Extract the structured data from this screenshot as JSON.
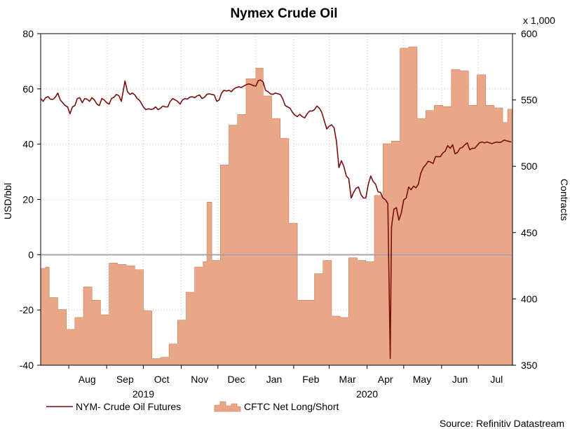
{
  "chart_data": {
    "type": "line+area",
    "title": "Nymex Crude Oil",
    "source": "Source: Refinitiv Datastream",
    "left_axis": {
      "label": "USD/bbl",
      "range": [
        -40,
        80
      ],
      "ticks": [
        "80",
        "60",
        "40",
        "20",
        "0",
        "-20",
        "-40"
      ],
      "tick_values": [
        80,
        60,
        40,
        20,
        0,
        -20,
        -40
      ]
    },
    "right_axis": {
      "label": "Contracts",
      "multiplier": "x 1,000",
      "range": [
        350,
        600
      ],
      "ticks": [
        "600",
        "550",
        "500",
        "450",
        "400",
        "350"
      ],
      "tick_values": [
        600,
        550,
        500,
        450,
        400,
        350
      ]
    },
    "x_axis": {
      "start": "2019-07-09",
      "end": "2020-07-29",
      "month_labels": [
        {
          "label": "Aug",
          "date": "2019-08-16"
        },
        {
          "label": "Sep",
          "date": "2019-09-16"
        },
        {
          "label": "Oct",
          "date": "2019-10-16"
        },
        {
          "label": "Nov",
          "date": "2019-11-16"
        },
        {
          "label": "Dec",
          "date": "2019-12-16"
        },
        {
          "label": "Jan",
          "date": "2020-01-16"
        },
        {
          "label": "Feb",
          "date": "2020-02-15"
        },
        {
          "label": "Mar",
          "date": "2020-03-16"
        },
        {
          "label": "Apr",
          "date": "2020-04-16"
        },
        {
          "label": "May",
          "date": "2020-05-16"
        },
        {
          "label": "Jun",
          "date": "2020-06-16"
        },
        {
          "label": "Jul",
          "date": "2020-07-16"
        }
      ],
      "month_ticks": [
        "2019-08-01",
        "2019-09-01",
        "2019-10-01",
        "2019-11-01",
        "2019-12-01",
        "2020-01-01",
        "2020-02-01",
        "2020-03-01",
        "2020-04-01",
        "2020-05-01",
        "2020-06-01",
        "2020-07-01"
      ],
      "year_labels": [
        {
          "label": "2019",
          "date": "2019-10-01"
        },
        {
          "label": "2020",
          "date": "2020-04-01"
        }
      ]
    },
    "grid": true,
    "zero_line": true,
    "legend_position": "bottom-left",
    "series": [
      {
        "name": "NYM- Crude Oil Futures",
        "kind": "line",
        "axis": "left",
        "color": "#7a0d0d",
        "points": [
          [
            "2019-07-09",
            56.5
          ],
          [
            "2019-07-11",
            55.5
          ],
          [
            "2019-07-13",
            56.8
          ],
          [
            "2019-07-15",
            57.2
          ],
          [
            "2019-07-17",
            56.3
          ],
          [
            "2019-07-19",
            56.2
          ],
          [
            "2019-07-21",
            57.0
          ],
          [
            "2019-07-23",
            58.5
          ],
          [
            "2019-07-25",
            56.0
          ],
          [
            "2019-07-27",
            55.0
          ],
          [
            "2019-07-29",
            54.0
          ],
          [
            "2019-07-31",
            53.5
          ],
          [
            "2019-08-02",
            51.0
          ],
          [
            "2019-08-04",
            53.5
          ],
          [
            "2019-08-06",
            54.0
          ],
          [
            "2019-08-08",
            56.5
          ],
          [
            "2019-08-10",
            56.8
          ],
          [
            "2019-08-12",
            55.0
          ],
          [
            "2019-08-14",
            56.5
          ],
          [
            "2019-08-16",
            56.3
          ],
          [
            "2019-08-18",
            55.5
          ],
          [
            "2019-08-20",
            56.8
          ],
          [
            "2019-08-22",
            56.0
          ],
          [
            "2019-08-24",
            54.5
          ],
          [
            "2019-08-26",
            54.0
          ],
          [
            "2019-08-28",
            56.5
          ],
          [
            "2019-08-30",
            56.0
          ],
          [
            "2019-09-01",
            55.0
          ],
          [
            "2019-09-03",
            54.5
          ],
          [
            "2019-09-05",
            56.5
          ],
          [
            "2019-09-07",
            57.0
          ],
          [
            "2019-09-09",
            58.0
          ],
          [
            "2019-09-11",
            57.5
          ],
          [
            "2019-09-13",
            55.5
          ],
          [
            "2019-09-16",
            62.9
          ],
          [
            "2019-09-18",
            59.0
          ],
          [
            "2019-09-20",
            58.0
          ],
          [
            "2019-09-22",
            58.5
          ],
          [
            "2019-09-24",
            57.8
          ],
          [
            "2019-09-26",
            56.5
          ],
          [
            "2019-09-28",
            55.8
          ],
          [
            "2019-10-01",
            53.5
          ],
          [
            "2019-10-03",
            52.5
          ],
          [
            "2019-10-05",
            52.8
          ],
          [
            "2019-10-07",
            52.6
          ],
          [
            "2019-10-09",
            52.7
          ],
          [
            "2019-10-11",
            53.5
          ],
          [
            "2019-10-13",
            52.5
          ],
          [
            "2019-10-15",
            53.0
          ],
          [
            "2019-10-17",
            53.8
          ],
          [
            "2019-10-19",
            53.5
          ],
          [
            "2019-10-21",
            53.5
          ],
          [
            "2019-10-23",
            55.5
          ],
          [
            "2019-10-25",
            56.5
          ],
          [
            "2019-10-27",
            56.0
          ],
          [
            "2019-10-29",
            55.5
          ],
          [
            "2019-10-31",
            54.5
          ],
          [
            "2019-11-02",
            56.0
          ],
          [
            "2019-11-04",
            56.5
          ],
          [
            "2019-11-06",
            56.3
          ],
          [
            "2019-11-08",
            57.0
          ],
          [
            "2019-11-10",
            57.2
          ],
          [
            "2019-11-12",
            56.8
          ],
          [
            "2019-11-14",
            57.5
          ],
          [
            "2019-11-16",
            57.8
          ],
          [
            "2019-11-18",
            56.5
          ],
          [
            "2019-11-20",
            57.0
          ],
          [
            "2019-11-22",
            58.0
          ],
          [
            "2019-11-24",
            58.2
          ],
          [
            "2019-11-26",
            58.0
          ],
          [
            "2019-11-28",
            57.8
          ],
          [
            "2019-11-30",
            55.5
          ],
          [
            "2019-12-02",
            56.0
          ],
          [
            "2019-12-04",
            58.5
          ],
          [
            "2019-12-06",
            59.5
          ],
          [
            "2019-12-08",
            59.2
          ],
          [
            "2019-12-10",
            59.5
          ],
          [
            "2019-12-12",
            59.0
          ],
          [
            "2019-12-14",
            60.0
          ],
          [
            "2019-12-16",
            60.5
          ],
          [
            "2019-12-18",
            60.8
          ],
          [
            "2019-12-20",
            60.5
          ],
          [
            "2019-12-22",
            61.0
          ],
          [
            "2019-12-24",
            61.5
          ],
          [
            "2019-12-26",
            61.8
          ],
          [
            "2019-12-28",
            61.6
          ],
          [
            "2019-12-30",
            61.2
          ],
          [
            "2020-01-01",
            61.0
          ],
          [
            "2020-01-03",
            63.0
          ],
          [
            "2020-01-05",
            63.2
          ],
          [
            "2020-01-07",
            62.5
          ],
          [
            "2020-01-09",
            59.5
          ],
          [
            "2020-01-11",
            59.0
          ],
          [
            "2020-01-13",
            58.2
          ],
          [
            "2020-01-15",
            58.0
          ],
          [
            "2020-01-17",
            58.5
          ],
          [
            "2020-01-19",
            58.2
          ],
          [
            "2020-01-21",
            58.0
          ],
          [
            "2020-01-23",
            56.5
          ],
          [
            "2020-01-25",
            54.0
          ],
          [
            "2020-01-27",
            53.5
          ],
          [
            "2020-01-29",
            53.0
          ],
          [
            "2020-01-31",
            51.5
          ],
          [
            "2020-02-02",
            50.5
          ],
          [
            "2020-02-04",
            50.0
          ],
          [
            "2020-02-06",
            50.8
          ],
          [
            "2020-02-08",
            50.0
          ],
          [
            "2020-02-10",
            49.5
          ],
          [
            "2020-02-12",
            51.0
          ],
          [
            "2020-02-14",
            52.0
          ],
          [
            "2020-02-16",
            52.0
          ],
          [
            "2020-02-18",
            52.5
          ],
          [
            "2020-02-20",
            53.8
          ],
          [
            "2020-02-22",
            53.0
          ],
          [
            "2020-02-24",
            51.5
          ],
          [
            "2020-02-26",
            48.5
          ],
          [
            "2020-02-28",
            45.5
          ],
          [
            "2020-03-01",
            46.5
          ],
          [
            "2020-03-03",
            47.0
          ],
          [
            "2020-03-05",
            46.0
          ],
          [
            "2020-03-07",
            41.0
          ],
          [
            "2020-03-09",
            31.5
          ],
          [
            "2020-03-11",
            34.0
          ],
          [
            "2020-03-13",
            32.0
          ],
          [
            "2020-03-15",
            28.5
          ],
          [
            "2020-03-17",
            27.5
          ],
          [
            "2020-03-19",
            20.5
          ],
          [
            "2020-03-21",
            22.5
          ],
          [
            "2020-03-23",
            24.0
          ],
          [
            "2020-03-25",
            24.5
          ],
          [
            "2020-03-27",
            21.8
          ],
          [
            "2020-03-29",
            20.5
          ],
          [
            "2020-03-31",
            20.5
          ],
          [
            "2020-04-02",
            25.5
          ],
          [
            "2020-04-04",
            28.5
          ],
          [
            "2020-04-06",
            26.5
          ],
          [
            "2020-04-08",
            25.5
          ],
          [
            "2020-04-10",
            22.8
          ],
          [
            "2020-04-12",
            22.5
          ],
          [
            "2020-04-14",
            20.5
          ],
          [
            "2020-04-16",
            19.9
          ],
          [
            "2020-04-18",
            18.5
          ],
          [
            "2020-04-20",
            -37.6
          ],
          [
            "2020-04-21",
            10.0
          ],
          [
            "2020-04-23",
            16.5
          ],
          [
            "2020-04-25",
            17.0
          ],
          [
            "2020-04-27",
            12.5
          ],
          [
            "2020-04-29",
            15.0
          ],
          [
            "2020-05-01",
            19.8
          ],
          [
            "2020-05-03",
            20.5
          ],
          [
            "2020-05-05",
            24.5
          ],
          [
            "2020-05-07",
            23.5
          ],
          [
            "2020-05-09",
            24.8
          ],
          [
            "2020-05-11",
            24.2
          ],
          [
            "2020-05-13",
            25.5
          ],
          [
            "2020-05-15",
            29.5
          ],
          [
            "2020-05-17",
            31.5
          ],
          [
            "2020-05-19",
            32.5
          ],
          [
            "2020-05-21",
            33.8
          ],
          [
            "2020-05-23",
            33.5
          ],
          [
            "2020-05-25",
            33.0
          ],
          [
            "2020-05-27",
            35.5
          ],
          [
            "2020-05-29",
            35.5
          ],
          [
            "2020-05-31",
            35.5
          ],
          [
            "2020-06-02",
            36.8
          ],
          [
            "2020-06-04",
            37.5
          ],
          [
            "2020-06-06",
            39.5
          ],
          [
            "2020-06-08",
            38.5
          ],
          [
            "2020-06-10",
            39.8
          ],
          [
            "2020-06-12",
            36.5
          ],
          [
            "2020-06-14",
            37.0
          ],
          [
            "2020-06-16",
            38.5
          ],
          [
            "2020-06-18",
            38.8
          ],
          [
            "2020-06-20",
            39.8
          ],
          [
            "2020-06-22",
            40.5
          ],
          [
            "2020-06-24",
            38.0
          ],
          [
            "2020-06-26",
            38.5
          ],
          [
            "2020-06-28",
            38.5
          ],
          [
            "2020-06-30",
            39.5
          ],
          [
            "2020-07-02",
            40.5
          ],
          [
            "2020-07-04",
            40.8
          ],
          [
            "2020-07-06",
            40.5
          ],
          [
            "2020-07-08",
            40.8
          ],
          [
            "2020-07-10",
            40.5
          ],
          [
            "2020-07-12",
            40.2
          ],
          [
            "2020-07-14",
            40.5
          ],
          [
            "2020-07-16",
            40.8
          ],
          [
            "2020-07-18",
            40.6
          ],
          [
            "2020-07-20",
            40.8
          ],
          [
            "2020-07-22",
            41.5
          ],
          [
            "2020-07-24",
            41.2
          ],
          [
            "2020-07-26",
            41.0
          ],
          [
            "2020-07-28",
            40.8
          ]
        ]
      },
      {
        "name": "CFTC Net Long/Short",
        "kind": "area-step",
        "axis": "right",
        "color": "#e8a888",
        "edge_color": "#c46a48",
        "points": [
          [
            "2019-07-09",
            423
          ],
          [
            "2019-07-13",
            424
          ],
          [
            "2019-07-16",
            401
          ],
          [
            "2019-07-23",
            392
          ],
          [
            "2019-07-30",
            377
          ],
          [
            "2019-08-06",
            386
          ],
          [
            "2019-08-13",
            409
          ],
          [
            "2019-08-20",
            399
          ],
          [
            "2019-08-27",
            388
          ],
          [
            "2019-09-03",
            427
          ],
          [
            "2019-09-10",
            426
          ],
          [
            "2019-09-17",
            425
          ],
          [
            "2019-09-24",
            422
          ],
          [
            "2019-10-01",
            391
          ],
          [
            "2019-10-08",
            355
          ],
          [
            "2019-10-15",
            356
          ],
          [
            "2019-10-22",
            366
          ],
          [
            "2019-10-29",
            384
          ],
          [
            "2019-11-05",
            405
          ],
          [
            "2019-11-12",
            424
          ],
          [
            "2019-11-19",
            428
          ],
          [
            "2019-11-22",
            473
          ],
          [
            "2019-11-26",
            429
          ],
          [
            "2019-12-03",
            501
          ],
          [
            "2019-12-10",
            531
          ],
          [
            "2019-12-17",
            539
          ],
          [
            "2019-12-24",
            566
          ],
          [
            "2020-01-01",
            574
          ],
          [
            "2020-01-07",
            553
          ],
          [
            "2020-01-14",
            536
          ],
          [
            "2020-01-21",
            521
          ],
          [
            "2020-01-28",
            457
          ],
          [
            "2020-02-04",
            399
          ],
          [
            "2020-02-11",
            399
          ],
          [
            "2020-02-18",
            419
          ],
          [
            "2020-02-25",
            429
          ],
          [
            "2020-03-03",
            387
          ],
          [
            "2020-03-10",
            386
          ],
          [
            "2020-03-17",
            431
          ],
          [
            "2020-03-24",
            429
          ],
          [
            "2020-03-31",
            428
          ],
          [
            "2020-04-07",
            478
          ],
          [
            "2020-04-14",
            517
          ],
          [
            "2020-04-21",
            519
          ],
          [
            "2020-04-28",
            589
          ],
          [
            "2020-05-05",
            590
          ],
          [
            "2020-05-12",
            536
          ],
          [
            "2020-05-19",
            542
          ],
          [
            "2020-05-26",
            546
          ],
          [
            "2020-06-02",
            545
          ],
          [
            "2020-06-09",
            573
          ],
          [
            "2020-06-16",
            572
          ],
          [
            "2020-06-23",
            546
          ],
          [
            "2020-06-30",
            569
          ],
          [
            "2020-07-07",
            546
          ],
          [
            "2020-07-14",
            544
          ],
          [
            "2020-07-21",
            533
          ],
          [
            "2020-07-25",
            543
          ],
          [
            "2020-07-29",
            543
          ]
        ]
      }
    ]
  }
}
